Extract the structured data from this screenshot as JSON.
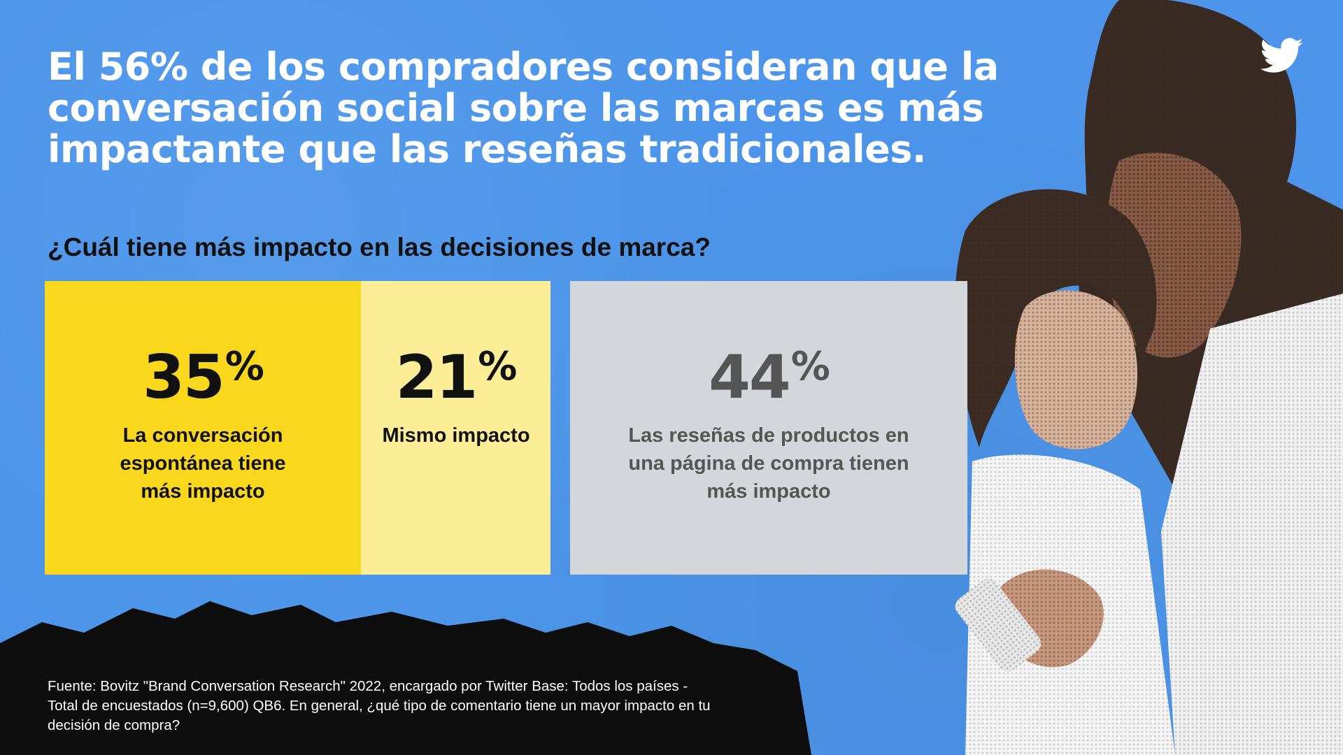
{
  "headline": "El 56% de los compradores consideran que la conversación social sobre las marcas es más impactante que las reseñas tradicionales.",
  "question": "¿Cuál tiene más impacto en las decisiones de marca?",
  "chart_data": {
    "type": "bar",
    "orientation": "horizontal-stacked",
    "title": "",
    "categories": [
      "La conversación espontánea tiene más impacto",
      "Mismo impacto",
      "Las reseñas de productos en una página de compra tienen más impacto"
    ],
    "values": [
      35,
      21,
      44
    ],
    "value_labels": [
      "35",
      "21",
      "44"
    ],
    "unit": "%",
    "colors": [
      "#f9d71c",
      "#fbee96",
      "#d3d6da"
    ],
    "text_colors": [
      "#111111",
      "#111111",
      "#555555"
    ]
  },
  "footnote": "Fuente: Bovitz \"Brand Conversation Research\" 2022, encargado por Twitter Base: Todos los países - Total de encuestados (n=9,600) QB6. En general, ¿qué tipo de comentario tiene un mayor impacto en tu decisión de compra?",
  "icons": {
    "brand": "twitter-bird-icon"
  },
  "colors": {
    "background": "#4c95ea",
    "footer": "#0d0d0d",
    "headline": "#ffffff"
  }
}
